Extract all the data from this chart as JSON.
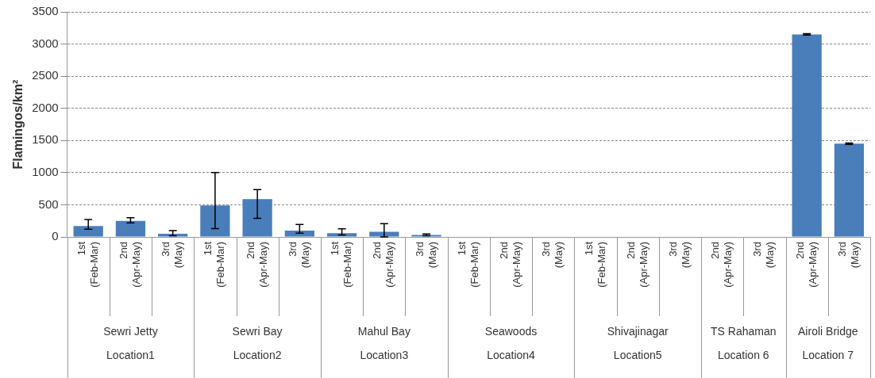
{
  "chart_data": {
    "type": "bar",
    "ylabel": "Flamingos/km²",
    "categories": [
      "1st\n(Feb-Mar)",
      "2nd\n(Apr-May)",
      "3rd\n(May)",
      "1st\n(Feb-Mar)",
      "2nd\n(Apr-May)",
      "3rd\n(May)",
      "1st\n(Feb-Mar)",
      "2nd\n(Apr-May)",
      "3rd\n(May)",
      "1st\n(Feb-Mar)",
      "2nd\n(Apr-May)",
      "3rd\n(May)",
      "1st\n(Feb-Mar)",
      "2nd\n(Apr-May)",
      "3rd\n(May)",
      "2nd\n(Apr-May)",
      "3rd\n(May)",
      "2nd\n(Apr-May)",
      "3rd\n(May)"
    ],
    "values": [
      170,
      250,
      50,
      490,
      590,
      100,
      60,
      80,
      30,
      0,
      5,
      5,
      0,
      0,
      0,
      0,
      0,
      3150,
      1450
    ],
    "errors": [
      [
        120,
        270
      ],
      [
        220,
        300
      ],
      [
        20,
        100
      ],
      [
        130,
        1000
      ],
      [
        290,
        735
      ],
      [
        60,
        195
      ],
      [
        30,
        125
      ],
      [
        0,
        205
      ],
      [
        20,
        45
      ],
      null,
      null,
      null,
      null,
      null,
      null,
      null,
      null,
      [
        3140,
        3160
      ],
      [
        1440,
        1460
      ]
    ],
    "color": "#4a7ebb",
    "ylim": [
      0,
      3500
    ],
    "yticks": [
      0,
      500,
      1000,
      1500,
      2000,
      2500,
      3000,
      3500
    ],
    "grid": "y",
    "annotations": [
      "Sewri Jetty",
      "Sewri Bay",
      "Mahul Bay",
      "Seawoods",
      "Shivajinagar",
      "TS Rahaman",
      "Airoli Bridge",
      "Location1",
      "Location2",
      "Location3",
      "Location4",
      "Location5",
      "Location 6",
      "Location 7"
    ]
  }
}
